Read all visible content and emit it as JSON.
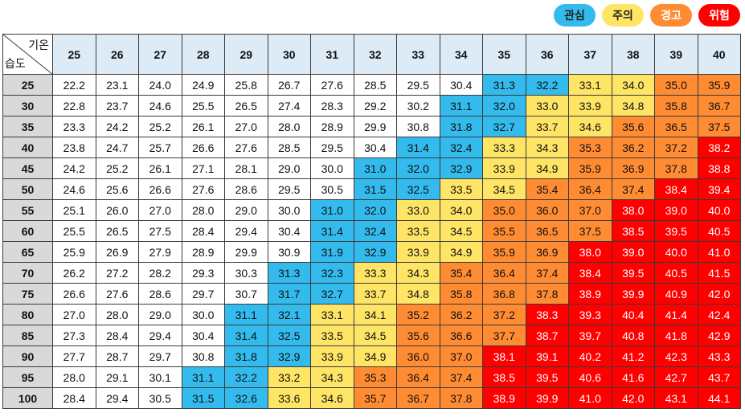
{
  "legend": [
    {
      "label": "관심",
      "color": "#33bbee",
      "text_color": "#222222"
    },
    {
      "label": "주의",
      "color": "#ffe566",
      "text_color": "#222222"
    },
    {
      "label": "경고",
      "color": "#ff8c33",
      "text_color": "#ffffff"
    },
    {
      "label": "위험",
      "color": "#ff0000",
      "text_color": "#ffffff"
    }
  ],
  "chart_data": {
    "type": "table",
    "col_axis_label": "기온",
    "row_axis_label": "습도",
    "columns": [
      25,
      26,
      27,
      28,
      29,
      30,
      31,
      32,
      33,
      34,
      35,
      36,
      37,
      38,
      39,
      40
    ],
    "rows": [
      25,
      30,
      35,
      40,
      45,
      50,
      55,
      60,
      65,
      70,
      75,
      80,
      85,
      90,
      95,
      100
    ],
    "values": [
      [
        22.2,
        23.1,
        24.0,
        24.9,
        25.8,
        26.7,
        27.6,
        28.5,
        29.5,
        30.4,
        31.3,
        32.2,
        33.1,
        34.0,
        35.0,
        35.9
      ],
      [
        22.8,
        23.7,
        24.6,
        25.5,
        26.5,
        27.4,
        28.3,
        29.2,
        30.2,
        31.1,
        32.0,
        33.0,
        33.9,
        34.8,
        35.8,
        36.7
      ],
      [
        23.3,
        24.2,
        25.2,
        26.1,
        27.0,
        28.0,
        28.9,
        29.9,
        30.8,
        31.8,
        32.7,
        33.7,
        34.6,
        35.6,
        36.5,
        37.5
      ],
      [
        23.8,
        24.7,
        25.7,
        26.6,
        27.6,
        28.5,
        29.5,
        30.4,
        31.4,
        32.4,
        33.3,
        34.3,
        35.3,
        36.2,
        37.2,
        38.2
      ],
      [
        24.2,
        25.2,
        26.1,
        27.1,
        28.1,
        29.0,
        30.0,
        31.0,
        32.0,
        32.9,
        33.9,
        34.9,
        35.9,
        36.9,
        37.8,
        38.8
      ],
      [
        24.6,
        25.6,
        26.6,
        27.6,
        28.6,
        29.5,
        30.5,
        31.5,
        32.5,
        33.5,
        34.5,
        35.4,
        36.4,
        37.4,
        38.4,
        39.4
      ],
      [
        25.1,
        26.0,
        27.0,
        28.0,
        29.0,
        30.0,
        31.0,
        32.0,
        33.0,
        34.0,
        35.0,
        36.0,
        37.0,
        38.0,
        39.0,
        40.0
      ],
      [
        25.5,
        26.5,
        27.5,
        28.4,
        29.4,
        30.4,
        31.4,
        32.4,
        33.5,
        34.5,
        35.5,
        36.5,
        37.5,
        38.5,
        39.5,
        40.5
      ],
      [
        25.9,
        26.9,
        27.9,
        28.9,
        29.9,
        30.9,
        31.9,
        32.9,
        33.9,
        34.9,
        35.9,
        36.9,
        38.0,
        39.0,
        40.0,
        41.0
      ],
      [
        26.2,
        27.2,
        28.2,
        29.3,
        30.3,
        31.3,
        32.3,
        33.3,
        34.3,
        35.4,
        36.4,
        37.4,
        38.4,
        39.5,
        40.5,
        41.5
      ],
      [
        26.6,
        27.6,
        28.6,
        29.7,
        30.7,
        31.7,
        32.7,
        33.7,
        34.8,
        35.8,
        36.8,
        37.8,
        38.9,
        39.9,
        40.9,
        42.0
      ],
      [
        27.0,
        28.0,
        29.0,
        30.0,
        31.1,
        32.1,
        33.1,
        34.1,
        35.2,
        36.2,
        37.2,
        38.3,
        39.3,
        40.4,
        41.4,
        42.4
      ],
      [
        27.3,
        28.4,
        29.4,
        30.4,
        31.4,
        32.5,
        33.5,
        34.5,
        35.6,
        36.6,
        37.7,
        38.7,
        39.7,
        40.8,
        41.8,
        42.9
      ],
      [
        27.7,
        28.7,
        29.7,
        30.8,
        31.8,
        32.9,
        33.9,
        34.9,
        36.0,
        37.0,
        38.1,
        39.1,
        40.2,
        41.2,
        42.3,
        43.3
      ],
      [
        28.0,
        29.1,
        30.1,
        31.1,
        32.2,
        33.2,
        34.3,
        35.3,
        36.4,
        37.4,
        38.5,
        39.5,
        40.6,
        41.6,
        42.7,
        43.7
      ],
      [
        28.4,
        29.4,
        30.5,
        31.5,
        32.6,
        33.6,
        34.6,
        35.7,
        36.7,
        37.8,
        38.9,
        39.9,
        41.0,
        42.0,
        43.1,
        44.1
      ]
    ],
    "levels": [
      {
        "label": "관심",
        "min": 31.0,
        "max": 32.9,
        "color": "#33bbee"
      },
      {
        "label": "주의",
        "min": 33.0,
        "max": 34.9,
        "color": "#ffe566"
      },
      {
        "label": "경고",
        "min": 35.0,
        "max": 37.9,
        "color": "#ff8c33"
      },
      {
        "label": "위험",
        "min": 38.0,
        "max": 99,
        "color": "#ff0000"
      }
    ]
  }
}
